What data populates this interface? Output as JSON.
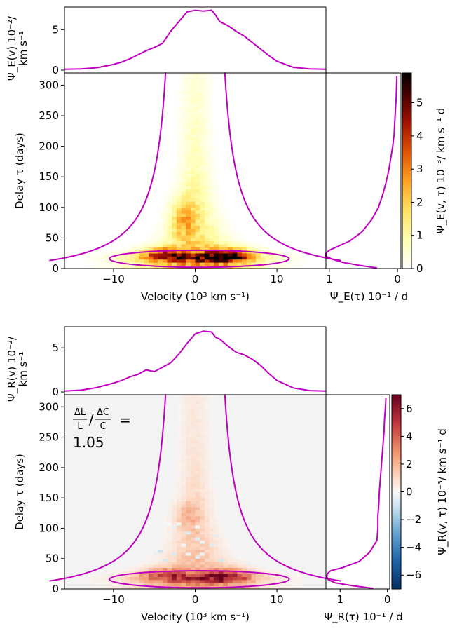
{
  "chart_data": [
    {
      "type": "heatmap",
      "panel": "top",
      "xlabel": "Velocity (10³ km s⁻¹)",
      "ylabel": "Delay τ (days)",
      "xticks": [
        "−10",
        "0",
        "10"
      ],
      "yticks": [
        "0",
        "50",
        "100",
        "150",
        "200",
        "250",
        "300"
      ],
      "xlim": [
        -16,
        16
      ],
      "ylim": [
        0,
        320
      ],
      "colorbar_label": "Ψ_E(v, τ) 10⁻³/ km s⁻¹ d",
      "colorbar_ticks": [
        "0",
        "1",
        "2",
        "3",
        "4",
        "5"
      ],
      "colorbar_range": [
        0,
        5.9
      ],
      "colormap": "afmhot_r",
      "line_color": "#c000c0",
      "top_marginal": {
        "ylabel": "Ψ_E(v) 10⁻²/ km s⁻¹",
        "yticks": [
          "0",
          "5"
        ],
        "ylim": [
          0,
          7.8
        ],
        "v": [
          -16,
          -14,
          -12,
          -10,
          -9,
          -8,
          -7,
          -6,
          -5,
          -4,
          -3,
          -2,
          -1,
          0,
          1,
          2,
          2.5,
          3,
          4,
          5,
          6,
          7,
          8,
          9,
          10,
          12,
          14,
          16
        ],
        "value": [
          0.1,
          0.15,
          0.3,
          0.7,
          1.0,
          1.4,
          1.9,
          2.4,
          2.8,
          3.3,
          4.8,
          6.0,
          7.2,
          7.4,
          7.3,
          7.4,
          6.8,
          6.0,
          5.5,
          4.8,
          4.2,
          3.4,
          2.6,
          1.8,
          1.1,
          0.35,
          0.15,
          0.1
        ]
      },
      "right_marginal": {
        "xlabel": "Ψ_E(τ) 10⁻¹ / d",
        "xticks": [
          "1",
          "0"
        ],
        "xlim": [
          1.05,
          -0.05
        ],
        "tau": [
          315,
          300,
          280,
          260,
          240,
          220,
          200,
          180,
          160,
          140,
          120,
          100,
          80,
          60,
          45,
          35,
          30,
          25,
          20,
          15,
          10,
          5,
          1
        ],
        "value": [
          0.01,
          0.015,
          0.02,
          0.03,
          0.04,
          0.05,
          0.07,
          0.1,
          0.13,
          0.17,
          0.22,
          0.28,
          0.38,
          0.52,
          0.7,
          0.9,
          1.0,
          1.05,
          1.05,
          0.95,
          0.8,
          0.55,
          0.3
        ]
      }
    },
    {
      "type": "heatmap",
      "panel": "bottom",
      "xlabel": "Velocity (10³ km s⁻¹)",
      "ylabel": "Delay τ (days)",
      "xticks": [
        "−10",
        "0",
        "10"
      ],
      "yticks": [
        "0",
        "50",
        "100",
        "150",
        "200",
        "250",
        "300"
      ],
      "xlim": [
        -16,
        16
      ],
      "ylim": [
        0,
        320
      ],
      "colorbar_label": "Ψ_R(v, τ) 10⁻³/ km s⁻¹ d",
      "colorbar_ticks": [
        "6",
        "4",
        "2",
        "0",
        "−2",
        "−4",
        "−6"
      ],
      "colorbar_range": [
        -7,
        7
      ],
      "colormap": "RdBu_r",
      "line_color": "#c000c0",
      "annotation": {
        "frac_top_1": "ΔL",
        "frac_bottom_1": "L",
        "slash": "/",
        "frac_top_2": "ΔC",
        "frac_bottom_2": "C",
        "equals": "=",
        "value": "1.05"
      },
      "top_marginal": {
        "ylabel": "Ψ_R(v) 10⁻²/ km s⁻¹",
        "yticks": [
          "0",
          "5"
        ],
        "ylim": [
          0,
          7.4
        ],
        "v": [
          -16,
          -14,
          -12,
          -10,
          -9,
          -8,
          -7,
          -6,
          -5,
          -4,
          -3,
          -2,
          -1,
          0,
          1,
          2,
          2.5,
          3,
          4,
          5,
          6,
          7,
          8,
          9,
          10,
          12,
          14,
          16
        ],
        "value": [
          0.1,
          0.2,
          0.5,
          1.0,
          1.3,
          1.7,
          2.0,
          2.5,
          2.3,
          2.8,
          3.3,
          4.3,
          5.5,
          6.6,
          6.9,
          6.8,
          6.2,
          6.0,
          5.2,
          4.5,
          4.2,
          3.7,
          3.0,
          2.1,
          1.3,
          0.45,
          0.15,
          0.1
        ]
      },
      "right_marginal": {
        "xlabel": "Ψ_R(τ) 10⁻¹ / d",
        "xticks": [
          "1",
          "0"
        ],
        "xlim": [
          1.3,
          -0.05
        ],
        "tau": [
          315,
          300,
          280,
          260,
          240,
          220,
          200,
          180,
          160,
          140,
          120,
          100,
          80,
          60,
          45,
          35,
          30,
          25,
          20,
          15,
          10,
          5,
          1
        ],
        "value": [
          0.03,
          0.04,
          0.06,
          0.07,
          0.09,
          0.11,
          0.13,
          0.15,
          0.17,
          0.18,
          0.2,
          0.2,
          0.22,
          0.38,
          0.6,
          0.95,
          1.2,
          1.27,
          1.28,
          1.25,
          1.1,
          0.7,
          0.3
        ]
      }
    }
  ]
}
